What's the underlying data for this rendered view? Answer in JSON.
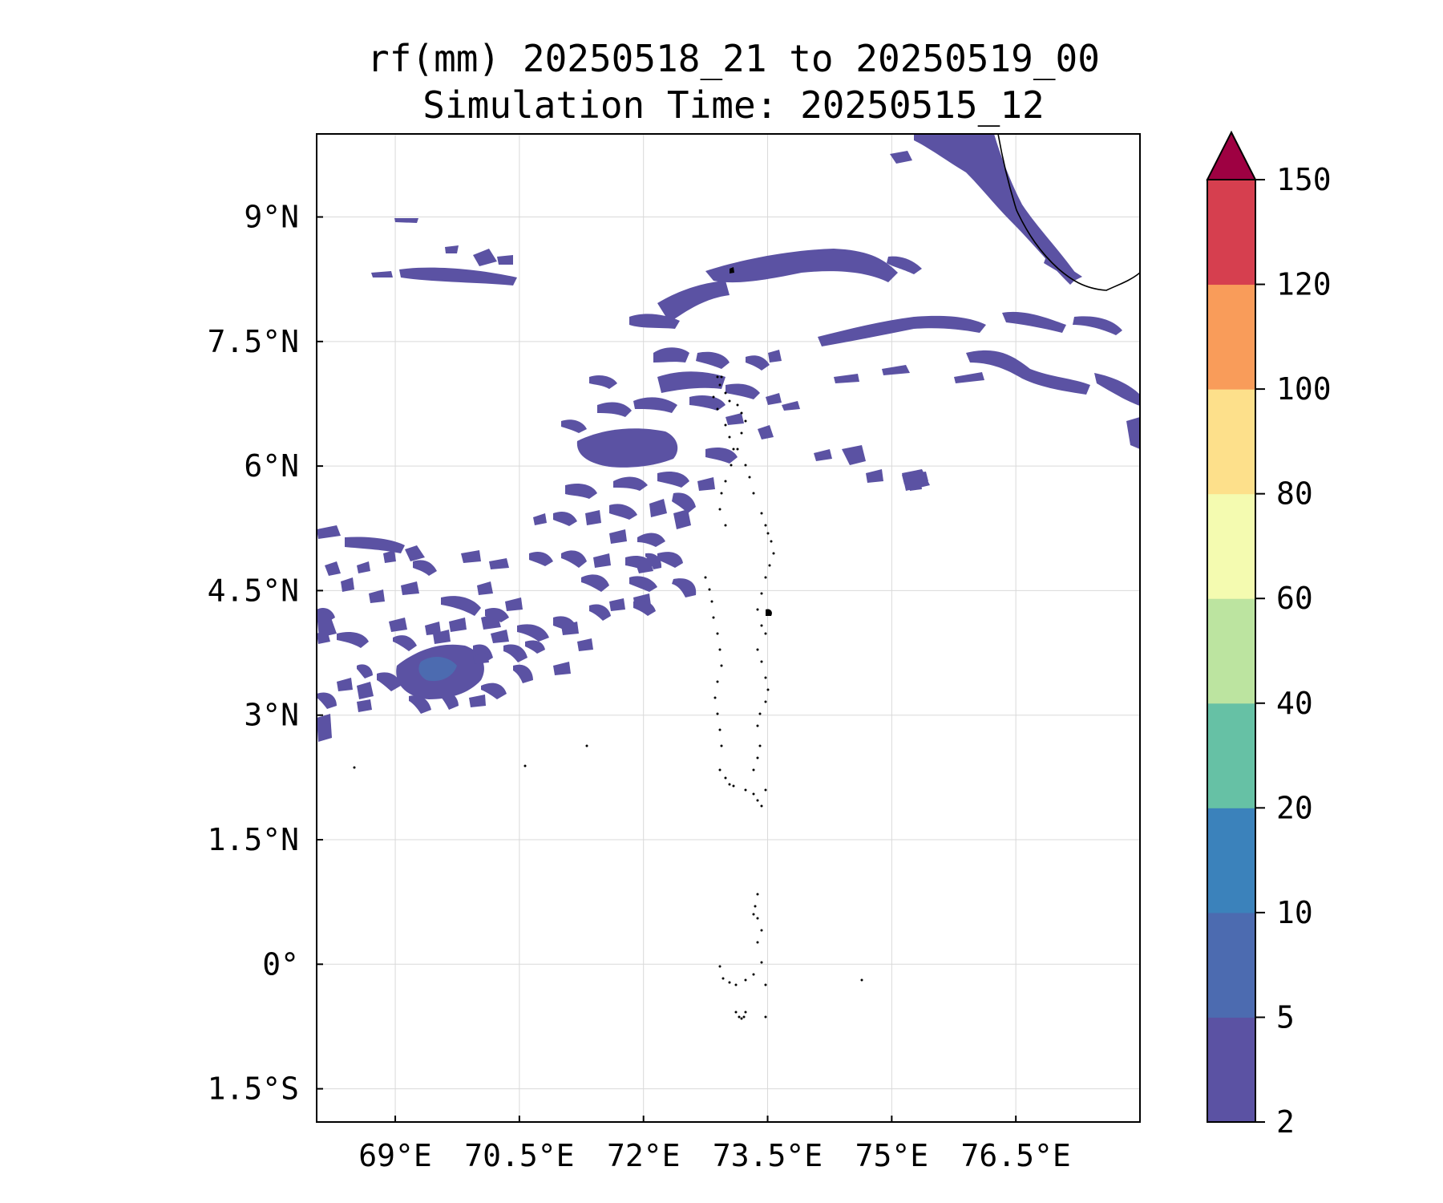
{
  "title": {
    "line1": "rf(mm) 20250518_21 to 20250519_00",
    "line2": "Simulation Time: 20250515_12"
  },
  "map": {
    "lon_range": [
      68.05,
      78.0
    ],
    "lat_range": [
      -1.9,
      10.0
    ],
    "x_ticks": [
      {
        "value": 69.0,
        "label": "69°E"
      },
      {
        "value": 70.5,
        "label": "70.5°E"
      },
      {
        "value": 72.0,
        "label": "72°E"
      },
      {
        "value": 73.5,
        "label": "73.5°E"
      },
      {
        "value": 75.0,
        "label": "75°E"
      },
      {
        "value": 76.5,
        "label": "76.5°E"
      }
    ],
    "y_ticks": [
      {
        "value": 9.0,
        "label": "9°N"
      },
      {
        "value": 7.5,
        "label": "7.5°N"
      },
      {
        "value": 6.0,
        "label": "6°N"
      },
      {
        "value": 4.5,
        "label": "4.5°N"
      },
      {
        "value": 3.0,
        "label": "3°N"
      },
      {
        "value": 1.5,
        "label": "1.5°N"
      },
      {
        "value": 0.0,
        "label": "0°"
      },
      {
        "value": -1.5,
        "label": "1.5°S"
      }
    ],
    "grid": true
  },
  "colorbar": {
    "extend": "max",
    "boundaries": [
      2,
      5,
      10,
      20,
      40,
      60,
      80,
      100,
      120,
      150
    ],
    "labels": [
      "2",
      "5",
      "10",
      "20",
      "40",
      "60",
      "80",
      "100",
      "120",
      "150"
    ],
    "colors": [
      "#5b52a3",
      "#4c6bb0",
      "#3b82bb",
      "#66c1a5",
      "#bce4a0",
      "#f4fbb0",
      "#fde08b",
      "#f99c5a",
      "#d63f4f"
    ],
    "extend_color": "#9e0142"
  },
  "colors": {
    "precip_low": "#5b52a3",
    "precip_mid": "#4c6bb0"
  }
}
